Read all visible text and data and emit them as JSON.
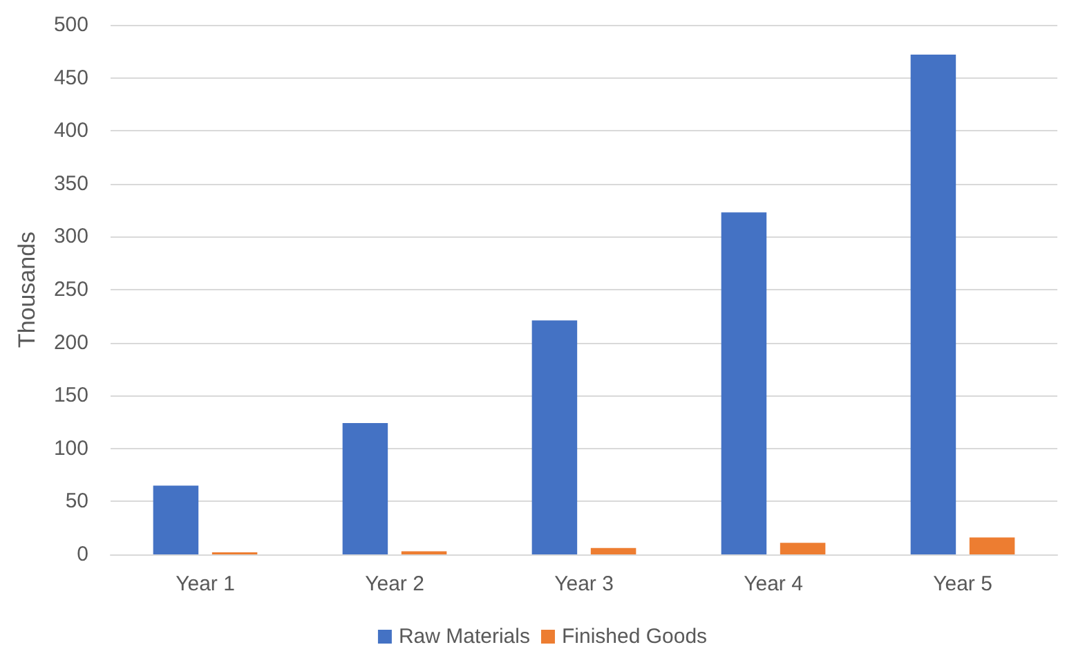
{
  "chart_data": {
    "type": "bar",
    "ylabel": "Thousands",
    "categories": [
      "Year 1",
      "Year 2",
      "Year 3",
      "Year 4",
      "Year 5"
    ],
    "series": [
      {
        "name": "Raw Materials",
        "color": "#4472c4",
        "values": [
          65,
          124,
          221,
          323,
          472
        ]
      },
      {
        "name": "Finished Goods",
        "color": "#ed7d31",
        "values": [
          2,
          3,
          6,
          11,
          16
        ]
      }
    ],
    "ylim": [
      0,
      500
    ],
    "yticks": [
      0,
      50,
      100,
      150,
      200,
      250,
      300,
      350,
      400,
      450,
      500
    ],
    "grid": "y",
    "legend": "bottom"
  }
}
